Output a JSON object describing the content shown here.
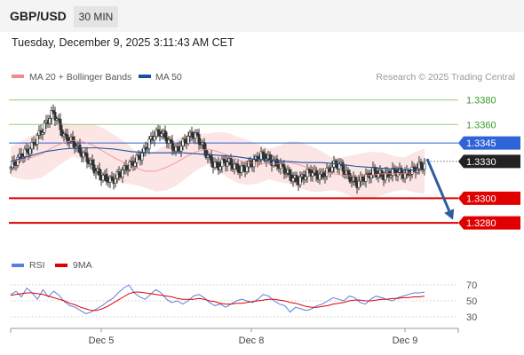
{
  "header": {
    "symbol": "GBP/USD",
    "timeframe": "30 MIN"
  },
  "timestamp": "Tuesday, December 9, 2025 3:11:43 AM CET",
  "attribution": "Research © 2025 Trading Central",
  "colors": {
    "bollinger": "#f08a8a",
    "ma50": "#1d4fa0",
    "candle": "#333333",
    "support": "#e00000",
    "resistance_faint": "#9acd7a",
    "pivot": "#2f63d8",
    "arrow": "#2e5c9c",
    "rsi": "#5b7fe0",
    "rsi_ma": "#e00000"
  },
  "chart_data": [
    {
      "type": "candlestick",
      "title": "",
      "legend": [
        {
          "label": "MA 20 + Bollinger Bands",
          "color": "#f08a8a"
        },
        {
          "label": "MA 50",
          "color": "#1d4fa0"
        }
      ],
      "x_tick_labels": [
        "Dec 5",
        "Dec 8",
        "Dec 9"
      ],
      "ylim": [
        1.3262,
        1.3392
      ],
      "current_price": "1.3330",
      "levels": [
        {
          "value": 1.338,
          "label": "1.3380",
          "kind": "resistance-faint"
        },
        {
          "value": 1.336,
          "label": "1.3360",
          "kind": "resistance-faint"
        },
        {
          "value": 1.3345,
          "label": "1.3345",
          "kind": "pivot"
        },
        {
          "value": 1.33,
          "label": "1.3300",
          "kind": "support"
        },
        {
          "value": 1.328,
          "label": "1.3280",
          "kind": "support"
        }
      ],
      "forecast": {
        "from": 1.3332,
        "to": 1.3281,
        "direction": "down"
      },
      "series": [
        {
          "name": "Price",
          "values": [
            1.3325,
            1.333,
            1.3335,
            1.3338,
            1.3342,
            1.335,
            1.3356,
            1.3364,
            1.337,
            1.3361,
            1.335,
            1.3348,
            1.3344,
            1.3338,
            1.3334,
            1.3328,
            1.3322,
            1.3318,
            1.3316,
            1.3314,
            1.3318,
            1.3322,
            1.3326,
            1.3329,
            1.3333,
            1.3338,
            1.3346,
            1.3352,
            1.3354,
            1.335,
            1.3344,
            1.3339,
            1.3343,
            1.3348,
            1.3352,
            1.335,
            1.3342,
            1.3334,
            1.3328,
            1.3326,
            1.333,
            1.3329,
            1.3326,
            1.3323,
            1.3325,
            1.3328,
            1.3331,
            1.3335,
            1.3333,
            1.333,
            1.3328,
            1.3325,
            1.332,
            1.3316,
            1.3314,
            1.3318,
            1.3322,
            1.332,
            1.3318,
            1.332,
            1.3325,
            1.3328,
            1.3326,
            1.332,
            1.3315,
            1.3312,
            1.3316,
            1.3318,
            1.3322,
            1.332,
            1.3318,
            1.332,
            1.3322,
            1.3321,
            1.3319,
            1.3322,
            1.3324,
            1.3327
          ]
        },
        {
          "name": "MA 20",
          "values": [
            1.333,
            1.3331,
            1.3333,
            1.3336,
            1.3341,
            1.3345,
            1.3347,
            1.3346,
            1.3343,
            1.3338,
            1.3333,
            1.3329,
            1.3325,
            1.3322,
            1.3322,
            1.3325,
            1.3329,
            1.3334,
            1.3338,
            1.334,
            1.3338,
            1.3335,
            1.3331,
            1.3329,
            1.3328,
            1.3328,
            1.3328,
            1.3329,
            1.3327,
            1.3324,
            1.3322,
            1.332,
            1.3319,
            1.3318,
            1.3318,
            1.3319,
            1.332,
            1.332,
            1.332,
            1.3321,
            1.3322
          ]
        },
        {
          "name": "MA 50",
          "values": [
            1.333,
            1.3334,
            1.3338,
            1.334,
            1.3341,
            1.3341,
            1.334,
            1.3338,
            1.3337,
            1.3337,
            1.3337,
            1.3336,
            1.3335,
            1.3334,
            1.3332,
            1.3331,
            1.333,
            1.3329,
            1.3329,
            1.3328,
            1.3326,
            1.3325,
            1.3324,
            1.3323,
            1.3323
          ]
        }
      ]
    },
    {
      "type": "line",
      "title": "",
      "legend": [
        {
          "label": "RSI",
          "color": "#5b7fe0"
        },
        {
          "label": "9MA",
          "color": "#e00000"
        }
      ],
      "ylim": [
        20,
        80
      ],
      "y_ticks": [
        70,
        50,
        30
      ],
      "series": [
        {
          "name": "RSI",
          "values": [
            58,
            62,
            55,
            66,
            60,
            52,
            64,
            55,
            62,
            57,
            49,
            44,
            42,
            38,
            34,
            36,
            40,
            44,
            49,
            53,
            60,
            66,
            70,
            60,
            55,
            52,
            58,
            64,
            60,
            52,
            48,
            50,
            46,
            50,
            56,
            58,
            54,
            48,
            44,
            46,
            42,
            46,
            50,
            52,
            50,
            48,
            52,
            58,
            56,
            50,
            46,
            44,
            36,
            42,
            40,
            38,
            40,
            44,
            46,
            50,
            54,
            52,
            50,
            56,
            54,
            48,
            46,
            52,
            56,
            54,
            52,
            50,
            54,
            56,
            58,
            60,
            60,
            61
          ]
        },
        {
          "name": "9MA",
          "values": [
            57,
            58,
            59,
            60,
            60,
            59,
            58,
            56,
            54,
            52,
            50,
            47,
            45,
            42,
            40,
            38,
            38,
            40,
            43,
            47,
            51,
            55,
            59,
            61,
            61,
            60,
            59,
            58,
            57,
            56,
            55,
            53,
            52,
            52,
            52,
            53,
            52,
            50,
            49,
            47,
            46,
            46,
            47,
            47,
            48,
            49,
            50,
            51,
            52,
            52,
            51,
            50,
            48,
            47,
            45,
            43,
            42,
            42,
            43,
            44,
            46,
            47,
            48,
            50,
            51,
            51,
            50,
            50,
            51,
            52,
            52,
            53,
            53,
            54,
            54,
            55,
            55,
            56
          ]
        }
      ]
    }
  ]
}
